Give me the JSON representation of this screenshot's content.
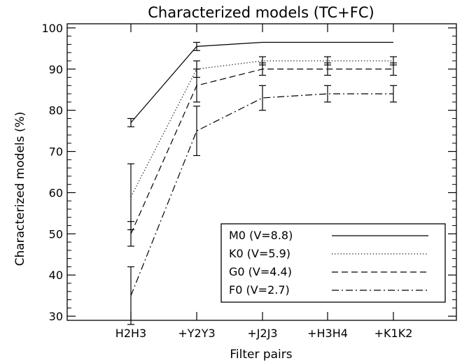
{
  "chart_data": {
    "type": "line",
    "title": "Characterized models (TC+FC)",
    "xlabel": "Filter pairs",
    "ylabel": "Characterized models (%)",
    "categories": [
      "H2H3",
      "+Y2Y3",
      "+J2J3",
      "+H3H4",
      "+K1K2"
    ],
    "ylim": [
      29,
      101
    ],
    "yticks": [
      30,
      40,
      50,
      60,
      70,
      80,
      90,
      100
    ],
    "grid": false,
    "legend_position": "bottom-right",
    "series": [
      {
        "name": "M0 (V=8.8)",
        "style": "solid",
        "values": [
          77,
          95.5,
          96.5,
          96.5,
          96.5
        ],
        "errors": [
          1,
          1,
          null,
          null,
          null
        ]
      },
      {
        "name": "K0 (V=5.9)",
        "style": "dotted",
        "values": [
          59,
          90,
          92,
          92,
          92
        ],
        "errors": [
          8,
          2,
          1,
          1,
          1
        ]
      },
      {
        "name": "G0 (V=4.4)",
        "style": "dashed",
        "values": [
          50,
          86,
          90,
          90,
          90
        ],
        "errors": [
          3,
          4,
          1.5,
          1.5,
          1.5
        ]
      },
      {
        "name": "F0 (V=2.7)",
        "style": "dashdot",
        "values": [
          35,
          75,
          83,
          84,
          84
        ],
        "errors": [
          7,
          6,
          3,
          2,
          2
        ]
      }
    ]
  }
}
